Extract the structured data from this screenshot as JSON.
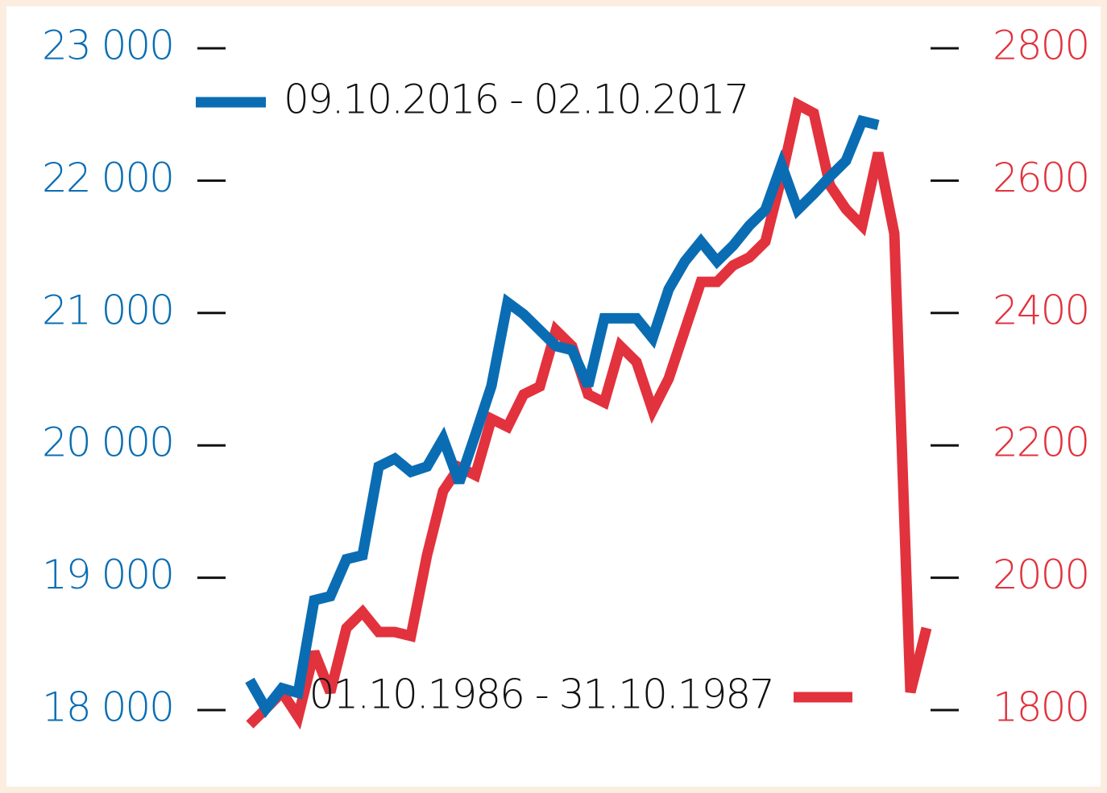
{
  "chart_data": {
    "type": "line",
    "ylim": [
      18000,
      23000
    ],
    "yticks": [
      {
        "value": 18000,
        "label": "18 000"
      },
      {
        "value": 19000,
        "label": "19 000"
      },
      {
        "value": 20000,
        "label": "20 000"
      },
      {
        "value": 21000,
        "label": "21 000"
      },
      {
        "value": 22000,
        "label": "22 000"
      },
      {
        "value": 23000,
        "label": "23 000"
      }
    ],
    "y2lim": [
      1800,
      2800
    ],
    "y2ticks": [
      1800,
      2000,
      2200,
      2400,
      2600,
      2800
    ],
    "series": [
      {
        "name": "09.10.2016 - 02.10.2017",
        "color": "#0a6db3",
        "values": [
          18225,
          18010,
          18165,
          18130,
          18830,
          18860,
          19140,
          19170,
          19840,
          19900,
          19800,
          19840,
          20050,
          19720,
          20080,
          20450,
          21080,
          20990,
          20870,
          20750,
          20720,
          20450,
          20960,
          20960,
          20960,
          20810,
          21180,
          21390,
          21540,
          21390,
          21510,
          21660,
          21780,
          22120,
          21780,
          21900,
          22030,
          22150,
          22450,
          22420,
          null,
          null,
          null
        ]
      },
      {
        "name": "01.10.1986 - 31.10.1987",
        "color": "#e2323d",
        "axis": "y2",
        "values": [
          1778,
          1802,
          1827,
          1790,
          1888,
          1827,
          1924,
          1948,
          1918,
          1918,
          1912,
          2034,
          2131,
          2167,
          2155,
          2240,
          2228,
          2277,
          2289,
          2374,
          2350,
          2277,
          2265,
          2350,
          2326,
          2253,
          2301,
          2374,
          2447,
          2447,
          2472,
          2484,
          2508,
          2605,
          2715,
          2702,
          2593,
          2557,
          2532,
          2642,
          2520,
          1827,
          1924
        ]
      }
    ]
  }
}
